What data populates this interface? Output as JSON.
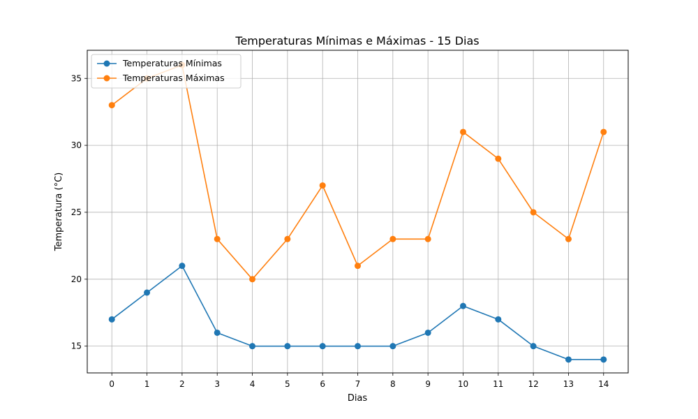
{
  "chart_data": {
    "type": "line",
    "title": "Temperaturas Mínimas e Máximas - 15 Dias",
    "xlabel": "Dias",
    "ylabel": "Temperatura (°C)",
    "x": [
      0,
      1,
      2,
      3,
      4,
      5,
      6,
      7,
      8,
      9,
      10,
      11,
      12,
      13,
      14
    ],
    "xlim": [
      -0.7,
      14.7
    ],
    "ylim": [
      13.0,
      37.1
    ],
    "yticks": [
      15,
      20,
      25,
      30,
      35
    ],
    "grid": true,
    "legend_position": "upper-left",
    "series": [
      {
        "name": "Temperaturas Mínimas",
        "color": "#1f77b4",
        "marker": "circle",
        "values": [
          17,
          19,
          21,
          16,
          15,
          15,
          15,
          15,
          15,
          16,
          18,
          17,
          15,
          14,
          14
        ]
      },
      {
        "name": "Temperaturas Máximas",
        "color": "#ff7f0e",
        "marker": "circle",
        "values": [
          33,
          35,
          36,
          23,
          20,
          23,
          27,
          21,
          23,
          23,
          31,
          29,
          25,
          23,
          31
        ]
      }
    ]
  }
}
